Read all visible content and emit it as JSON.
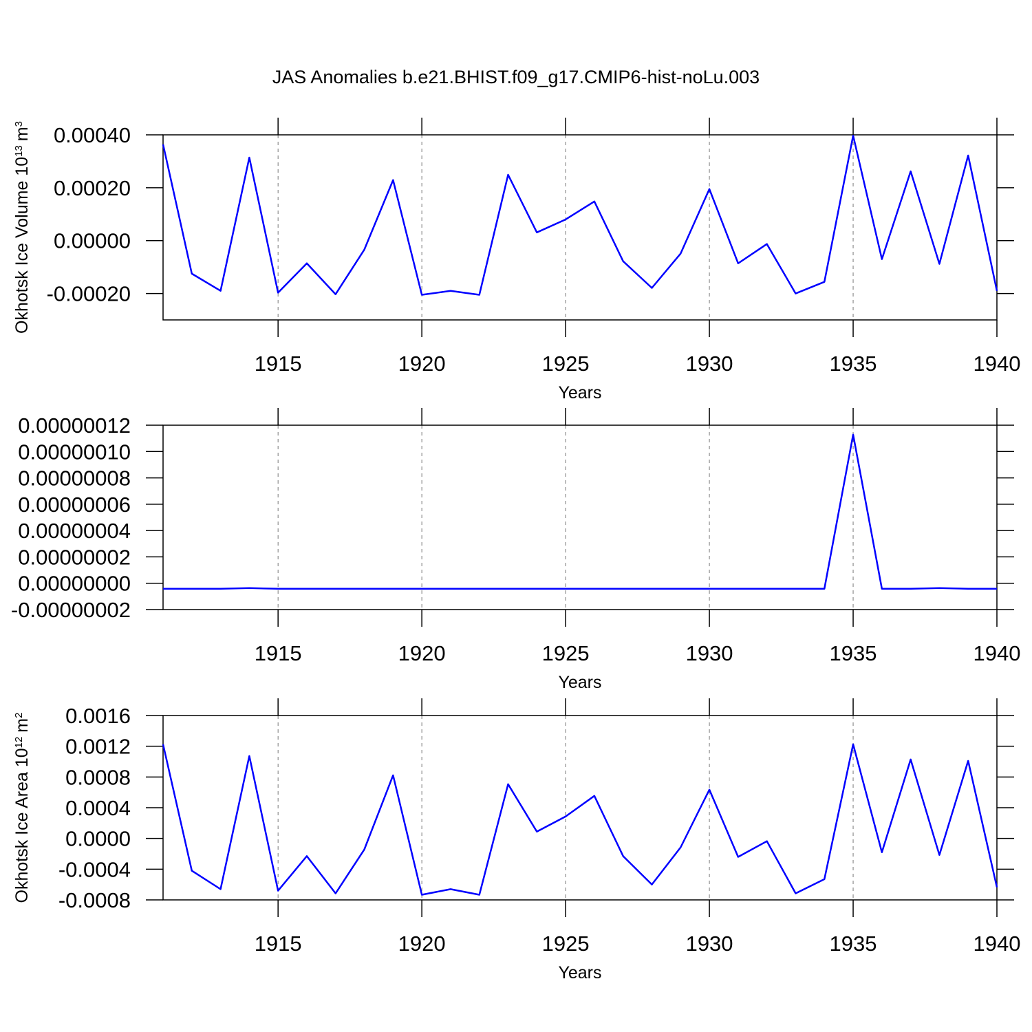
{
  "chart_data": [
    {
      "type": "line",
      "title": "JAS Anomalies b.e21.BHIST.f09_g17.CMIP6-hist-noLu.003",
      "ylabel": [
        "Okhotsk Ice Volume 10",
        "13",
        "m",
        "3"
      ],
      "xlabel": "Years",
      "x": [
        1911,
        1912,
        1913,
        1914,
        1915,
        1916,
        1917,
        1918,
        1919,
        1920,
        1921,
        1922,
        1923,
        1924,
        1925,
        1926,
        1927,
        1928,
        1929,
        1930,
        1931,
        1932,
        1933,
        1934,
        1935,
        1936,
        1937,
        1938,
        1939,
        1940
      ],
      "series": [
        {
          "color": "#0000ff",
          "values": [
            0.000364,
            -0.000125,
            -0.00019,
            0.000314,
            -0.000197,
            -8.6e-05,
            -0.000203,
            -3.4e-05,
            0.000229,
            -0.000205,
            -0.00019,
            -0.000205,
            0.000249,
            3.1e-05,
            8e-05,
            0.000148,
            -7.8e-05,
            -0.000179,
            -4.9e-05,
            0.000195,
            -8.6e-05,
            -1.3e-05,
            -0.0002,
            -0.000156,
            0.000397,
            -7e-05,
            0.000262,
            -8.8e-05,
            0.000322,
            -0.00019
          ]
        }
      ],
      "xlim": [
        1911,
        1940
      ],
      "xticks": [
        1915,
        1920,
        1925,
        1930,
        1935,
        1940
      ],
      "ylim": [
        -0.0003,
        0.0004
      ],
      "yticks": [
        {
          "value": -0.0002,
          "label": "-0.00020"
        },
        {
          "value": 0,
          "label": "0.00000"
        },
        {
          "value": 0.0002,
          "label": "0.00020"
        },
        {
          "value": 0.0004,
          "label": "0.00040"
        }
      ],
      "grid": true
    },
    {
      "type": "line",
      "xlabel": "Years",
      "x": [
        1911,
        1912,
        1913,
        1914,
        1915,
        1916,
        1917,
        1918,
        1919,
        1920,
        1921,
        1922,
        1923,
        1924,
        1925,
        1926,
        1927,
        1928,
        1929,
        1930,
        1931,
        1932,
        1933,
        1934,
        1935,
        1936,
        1937,
        1938,
        1939,
        1940
      ],
      "series": [
        {
          "color": "#0000ff",
          "values": [
            -4.2e-09,
            -4.2e-09,
            -4.2e-09,
            -3.7e-09,
            -4.2e-09,
            -4.2e-09,
            -4.2e-09,
            -4.2e-09,
            -4.2e-09,
            -4.2e-09,
            -4.2e-09,
            -4.2e-09,
            -4.2e-09,
            -4.2e-09,
            -4.2e-09,
            -4.2e-09,
            -4.2e-09,
            -4.2e-09,
            -4.2e-09,
            -4.2e-09,
            -4.2e-09,
            -4.2e-09,
            -4.2e-09,
            -4.2e-09,
            1.128e-07,
            -4.2e-09,
            -4.2e-09,
            -3.7e-09,
            -4.2e-09,
            -4.2e-09
          ]
        }
      ],
      "xlim": [
        1911,
        1940
      ],
      "xticks": [
        1915,
        1920,
        1925,
        1930,
        1935,
        1940
      ],
      "ylim": [
        -2e-08,
        1.2e-07
      ],
      "yticks": [
        {
          "value": -2e-08,
          "label": "-0.00000002"
        },
        {
          "value": 0,
          "label": "0.00000000"
        },
        {
          "value": 2e-08,
          "label": "0.00000002"
        },
        {
          "value": 4e-08,
          "label": "0.00000004"
        },
        {
          "value": 6e-08,
          "label": "0.00000006"
        },
        {
          "value": 8e-08,
          "label": "0.00000008"
        },
        {
          "value": 1e-07,
          "label": "0.00000010"
        },
        {
          "value": 1.2e-07,
          "label": "0.00000012"
        }
      ],
      "grid": true
    },
    {
      "type": "line",
      "ylabel": [
        "Okhotsk Ice Area 10",
        "12",
        "m",
        "2"
      ],
      "xlabel": "Years",
      "x": [
        1911,
        1912,
        1913,
        1914,
        1915,
        1916,
        1917,
        1918,
        1919,
        1920,
        1921,
        1922,
        1923,
        1924,
        1925,
        1926,
        1927,
        1928,
        1929,
        1930,
        1931,
        1932,
        1933,
        1934,
        1935,
        1936,
        1937,
        1938,
        1939,
        1940
      ],
      "series": [
        {
          "color": "#0000ff",
          "values": [
            0.001225,
            -0.00042,
            -0.00066,
            0.001073,
            -0.00068,
            -0.00023,
            -0.000715,
            -0.000143,
            0.000822,
            -0.000733,
            -0.00066,
            -0.000733,
            0.000706,
            8.9e-05,
            0.000286,
            0.000554,
            -0.00023,
            -0.0006,
            -0.000116,
            0.000635,
            -0.00024,
            -3.6e-05,
            -0.000715,
            -0.00053,
            0.001225,
            -0.00018,
            0.001028,
            -0.000215,
            0.00101,
            -0.000635
          ]
        }
      ],
      "xlim": [
        1911,
        1940
      ],
      "xticks": [
        1915,
        1920,
        1925,
        1930,
        1935,
        1940
      ],
      "ylim": [
        -0.0008,
        0.0016
      ],
      "yticks": [
        {
          "value": -0.0008,
          "label": "-0.0008"
        },
        {
          "value": -0.0004,
          "label": "-0.0004"
        },
        {
          "value": 0,
          "label": "0.0000"
        },
        {
          "value": 0.0004,
          "label": "0.0004"
        },
        {
          "value": 0.0008,
          "label": "0.0008"
        },
        {
          "value": 0.0012,
          "label": "0.0012"
        },
        {
          "value": 0.0016,
          "label": "0.0016"
        }
      ],
      "grid": true
    }
  ]
}
